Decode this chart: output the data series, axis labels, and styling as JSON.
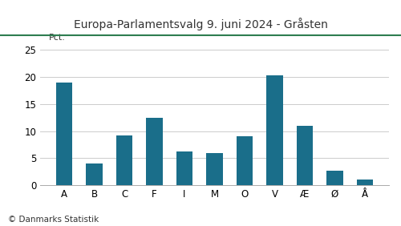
{
  "title": "Europa-Parlamentsvalg 9. juni 2024 - Gråsten",
  "categories": [
    "A",
    "B",
    "C",
    "F",
    "I",
    "M",
    "O",
    "V",
    "Æ",
    "Ø",
    "Å"
  ],
  "values": [
    19.0,
    4.0,
    9.2,
    12.5,
    6.2,
    6.0,
    9.1,
    20.3,
    11.0,
    2.7,
    1.1
  ],
  "bar_color": "#1a6e8a",
  "ylabel": "Pct.",
  "ylim": [
    0,
    25
  ],
  "yticks": [
    0,
    5,
    10,
    15,
    20,
    25
  ],
  "footer": "© Danmarks Statistik",
  "title_color": "#333333",
  "title_fontsize": 10,
  "bar_width": 0.55,
  "grid_color": "#cccccc",
  "top_line_color": "#2e7d50",
  "background_color": "#ffffff"
}
